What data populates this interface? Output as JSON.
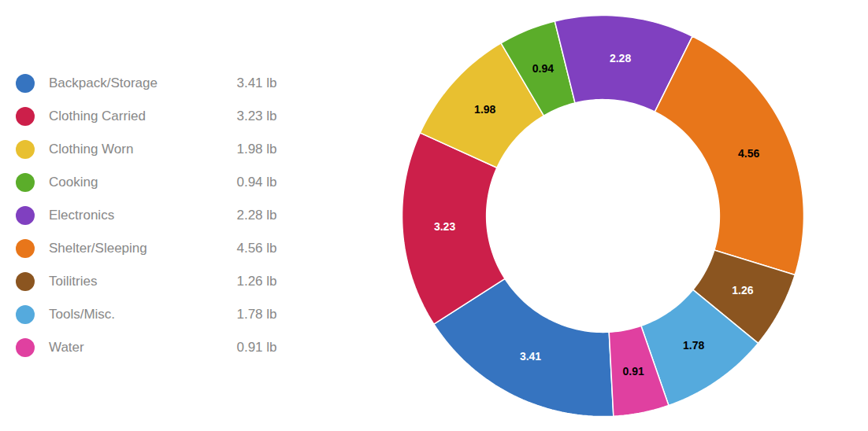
{
  "chart_data": {
    "type": "pie",
    "categories": [
      "Backpack/Storage",
      "Clothing Carried",
      "Clothing Worn",
      "Cooking",
      "Electronics",
      "Shelter/Sleeping",
      "Toilitries",
      "Tools/Misc.",
      "Water"
    ],
    "values": [
      3.41,
      3.23,
      1.98,
      0.94,
      2.28,
      4.56,
      1.26,
      1.78,
      0.91
    ],
    "value_labels": [
      "3.41 lb",
      "3.23 lb",
      "1.98 lb",
      "0.94 lb",
      "2.28 lb",
      "4.56 lb",
      "1.26 lb",
      "1.78 lb",
      "0.91 lb"
    ],
    "colors": [
      "#3674C0",
      "#CC1F4A",
      "#E8C030",
      "#5BAD2A",
      "#8040C0",
      "#E8761A",
      "#8B5520",
      "#55AADD",
      "#E040A0"
    ],
    "data_labels": true,
    "legend": "left"
  }
}
